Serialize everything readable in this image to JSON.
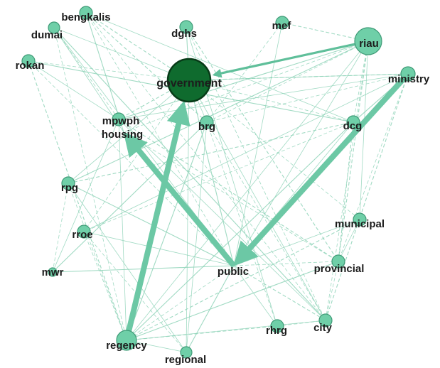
{
  "colors": {
    "node_fill": "#6fcfa8",
    "node_stroke": "#3e9a76",
    "hub_fill": "#0f6b2e",
    "hub_stroke": "#073a17",
    "edge_thin": "#8fd4b8",
    "edge_thick": "#6cc8a5"
  },
  "nodes": [
    {
      "id": "government",
      "label": "government",
      "hub": true
    },
    {
      "id": "riau",
      "label": "riau"
    },
    {
      "id": "ministry",
      "label": "ministry"
    },
    {
      "id": "dcg",
      "label": "dcg"
    },
    {
      "id": "brg",
      "label": "brg"
    },
    {
      "id": "mpwph",
      "label": "mpwph"
    },
    {
      "id": "housing",
      "label": "housing"
    },
    {
      "id": "dghs",
      "label": "dghs"
    },
    {
      "id": "mef",
      "label": "mef"
    },
    {
      "id": "bengkalis",
      "label": "bengkalis"
    },
    {
      "id": "dumai",
      "label": "dumai"
    },
    {
      "id": "rokan",
      "label": "rokan"
    },
    {
      "id": "rpg",
      "label": "rpg"
    },
    {
      "id": "rroe",
      "label": "rroe"
    },
    {
      "id": "mwr",
      "label": "mwr"
    },
    {
      "id": "public",
      "label": "public"
    },
    {
      "id": "municipal",
      "label": "municipal"
    },
    {
      "id": "provincial",
      "label": "provincial"
    },
    {
      "id": "city",
      "label": "city"
    },
    {
      "id": "rhrg",
      "label": "rhrg"
    },
    {
      "id": "regency",
      "label": "regency"
    },
    {
      "id": "regional",
      "label": "regional"
    }
  ],
  "directed_edges": [
    {
      "from": "riau",
      "to": "government",
      "weight": 2
    },
    {
      "from": "regency",
      "to": "government",
      "weight": 3
    },
    {
      "from": "public",
      "to": "housing",
      "weight": 3
    },
    {
      "from": "ministry",
      "to": "public",
      "weight": 3
    }
  ],
  "thin_edges": [
    [
      "government",
      "bengkalis"
    ],
    [
      "government",
      "dumai"
    ],
    [
      "government",
      "rokan"
    ],
    [
      "government",
      "dghs"
    ],
    [
      "government",
      "dcg"
    ],
    [
      "government",
      "brg"
    ],
    [
      "government",
      "mpwph"
    ],
    [
      "government",
      "rpg"
    ],
    [
      "government",
      "rroe"
    ],
    [
      "government",
      "public"
    ],
    [
      "government",
      "municipal"
    ],
    [
      "government",
      "city"
    ],
    [
      "government",
      "ministry"
    ],
    [
      "government",
      "regional"
    ],
    [
      "riau",
      "dcg"
    ],
    [
      "riau",
      "mpwph"
    ],
    [
      "riau",
      "brg"
    ],
    [
      "riau",
      "public"
    ],
    [
      "riau",
      "provincial"
    ],
    [
      "riau",
      "municipal"
    ],
    [
      "riau",
      "city"
    ],
    [
      "riau",
      "rpg"
    ],
    [
      "riau",
      "housing"
    ],
    [
      "riau",
      "regency"
    ],
    [
      "riau",
      "mef"
    ],
    [
      "ministry",
      "mpwph"
    ],
    [
      "ministry",
      "brg"
    ],
    [
      "ministry",
      "dcg"
    ],
    [
      "ministry",
      "provincial"
    ],
    [
      "ministry",
      "rroe"
    ],
    [
      "ministry",
      "city"
    ],
    [
      "ministry",
      "government"
    ],
    [
      "bengkalis",
      "public"
    ],
    [
      "bengkalis",
      "housing"
    ],
    [
      "bengkalis",
      "city"
    ],
    [
      "bengkalis",
      "dcg"
    ],
    [
      "bengkalis",
      "brg"
    ],
    [
      "dumai",
      "public"
    ],
    [
      "dumai",
      "mpwph"
    ],
    [
      "dumai",
      "city"
    ],
    [
      "dumai",
      "regency"
    ],
    [
      "dumai",
      "housing"
    ],
    [
      "rokan",
      "regency"
    ],
    [
      "rokan",
      "mpwph"
    ],
    [
      "rokan",
      "public"
    ],
    [
      "rokan",
      "dcg"
    ],
    [
      "dghs",
      "city"
    ],
    [
      "dghs",
      "rhrg"
    ],
    [
      "dghs",
      "provincial"
    ],
    [
      "mef",
      "public"
    ],
    [
      "mef",
      "brg"
    ],
    [
      "dcg",
      "regency"
    ],
    [
      "dcg",
      "rroe"
    ],
    [
      "dcg",
      "public"
    ],
    [
      "dcg",
      "provincial"
    ],
    [
      "brg",
      "regional"
    ],
    [
      "brg",
      "rhrg"
    ],
    [
      "brg",
      "mwr"
    ],
    [
      "brg",
      "city"
    ],
    [
      "mpwph",
      "city"
    ],
    [
      "mpwph",
      "provincial"
    ],
    [
      "mpwph",
      "regency"
    ],
    [
      "housing",
      "provincial"
    ],
    [
      "rpg",
      "public"
    ],
    [
      "rpg",
      "regency"
    ],
    [
      "rpg",
      "regional"
    ],
    [
      "rpg",
      "dcg"
    ],
    [
      "rroe",
      "public"
    ],
    [
      "rroe",
      "regional"
    ],
    [
      "mwr",
      "public"
    ],
    [
      "mwr",
      "rpg"
    ],
    [
      "mwr",
      "mpwph"
    ],
    [
      "public",
      "city"
    ],
    [
      "public",
      "rhrg"
    ],
    [
      "public",
      "provincial"
    ],
    [
      "public",
      "regional"
    ],
    [
      "public",
      "regency"
    ],
    [
      "municipal",
      "provincial"
    ],
    [
      "municipal",
      "regency"
    ],
    [
      "municipal",
      "public"
    ],
    [
      "provincial",
      "city"
    ],
    [
      "provincial",
      "regency"
    ],
    [
      "city",
      "rhrg"
    ],
    [
      "city",
      "regency"
    ],
    [
      "rhrg",
      "regency"
    ],
    [
      "regional",
      "regency"
    ],
    [
      "regency",
      "rroe"
    ],
    [
      "regency",
      "brg"
    ]
  ]
}
